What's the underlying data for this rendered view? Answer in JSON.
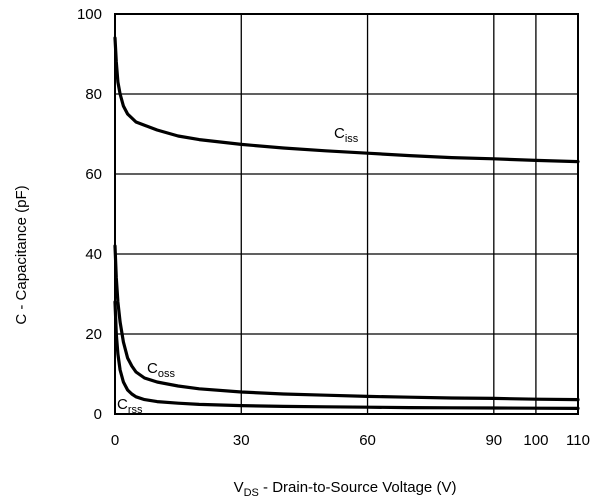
{
  "chart_data": {
    "type": "line",
    "title": "",
    "xlabel": {
      "main": "V",
      "sub": "DS",
      "rest": " - Drain-to-Source Voltage (V)"
    },
    "ylabel": "C - Capacitance (pF)",
    "xlim": [
      0,
      110
    ],
    "ylim": [
      0,
      100
    ],
    "x_ticks": [
      0,
      30,
      60,
      90,
      100,
      110
    ],
    "x_tick_labels": [
      "0",
      "30",
      "60",
      "90",
      "100",
      "110"
    ],
    "y_ticks": [
      0,
      20,
      40,
      60,
      80,
      100
    ],
    "y_tick_labels": [
      "0",
      "20",
      "40",
      "60",
      "80",
      "100"
    ],
    "grid": true,
    "series": [
      {
        "name": "Ciss",
        "label_main": "C",
        "label_sub": "iss",
        "x": [
          0,
          0.3,
          0.7,
          1.2,
          2,
          3,
          4,
          5,
          7,
          10,
          15,
          20,
          30,
          40,
          50,
          60,
          70,
          80,
          90,
          100,
          110
        ],
        "y": [
          94,
          88,
          83,
          80,
          77,
          75,
          74,
          73,
          72.2,
          71,
          69.5,
          68.6,
          67.4,
          66.5,
          65.8,
          65.2,
          64.6,
          64.1,
          63.8,
          63.4,
          63.1
        ]
      },
      {
        "name": "Coss",
        "label_main": "C",
        "label_sub": "oss",
        "x": [
          0,
          0.3,
          0.7,
          1.2,
          2,
          3,
          4,
          5,
          7,
          10,
          15,
          20,
          30,
          40,
          50,
          60,
          70,
          80,
          90,
          100,
          110
        ],
        "y": [
          42,
          34,
          28,
          23,
          18,
          14,
          12,
          10.5,
          9,
          8,
          7,
          6.3,
          5.5,
          5,
          4.7,
          4.4,
          4.2,
          4,
          3.9,
          3.7,
          3.6
        ]
      },
      {
        "name": "Crss",
        "label_main": "C",
        "label_sub": "rss",
        "x": [
          0,
          0.3,
          0.7,
          1.2,
          2,
          3,
          4,
          5,
          7,
          10,
          15,
          20,
          30,
          40,
          50,
          60,
          70,
          80,
          90,
          100,
          110
        ],
        "y": [
          28,
          20,
          15,
          11,
          8,
          6,
          5,
          4.3,
          3.6,
          3.1,
          2.7,
          2.4,
          2.1,
          1.9,
          1.8,
          1.7,
          1.6,
          1.55,
          1.5,
          1.45,
          1.4
        ]
      }
    ]
  }
}
